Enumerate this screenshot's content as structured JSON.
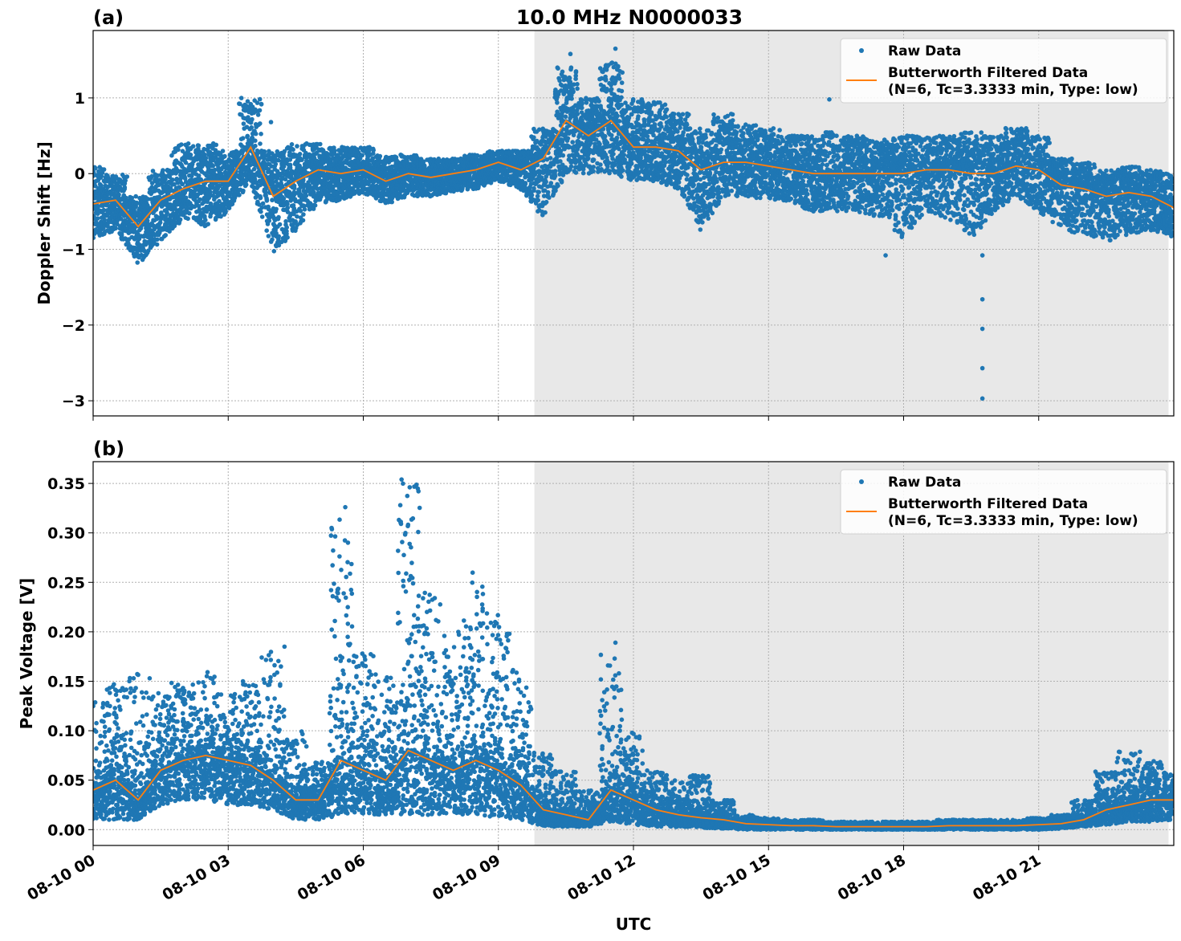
{
  "title": "10.0 MHz N0000033",
  "xlabel": "UTC",
  "x_tick_labels": [
    "08-10 00",
    "08-10 03",
    "08-10 06",
    "08-10 09",
    "08-10 12",
    "08-10 15",
    "08-10 18",
    "08-10 21"
  ],
  "x_tick_hours": [
    0,
    3,
    6,
    9,
    12,
    15,
    18,
    21
  ],
  "xlim": [
    "08-10 00:00",
    "08-11 00:00"
  ],
  "shaded_span": [
    "08-10 09:48",
    "08-10 23:53"
  ],
  "colors": {
    "raw": "#1f77b4",
    "filtered": "#ff7f0e",
    "shade": "#e8e8e8"
  },
  "legend": {
    "raw": "Raw Data",
    "filtered_line1": "Butterworth Filtered Data",
    "filtered_line2": "(N=6, Tc=3.3333 min, Type: low)",
    "placement": "top-right"
  },
  "times": [
    "08-10 00:00",
    "08-10 00:30",
    "08-10 01:00",
    "08-10 01:30",
    "08-10 02:00",
    "08-10 02:30",
    "08-10 03:00",
    "08-10 03:30",
    "08-10 04:00",
    "08-10 04:30",
    "08-10 05:00",
    "08-10 05:30",
    "08-10 06:00",
    "08-10 06:30",
    "08-10 07:00",
    "08-10 07:30",
    "08-10 08:00",
    "08-10 08:30",
    "08-10 09:00",
    "08-10 09:30",
    "08-10 10:00",
    "08-10 10:30",
    "08-10 11:00",
    "08-10 11:30",
    "08-10 12:00",
    "08-10 12:30",
    "08-10 13:00",
    "08-10 13:30",
    "08-10 14:00",
    "08-10 14:30",
    "08-10 15:00",
    "08-10 15:30",
    "08-10 16:00",
    "08-10 16:30",
    "08-10 17:00",
    "08-10 17:30",
    "08-10 18:00",
    "08-10 18:30",
    "08-10 19:00",
    "08-10 19:30",
    "08-10 20:00",
    "08-10 20:30",
    "08-10 21:00",
    "08-10 21:30",
    "08-10 22:00",
    "08-10 22:30",
    "08-10 23:00",
    "08-10 23:30",
    "08-11 00:00"
  ],
  "chart_data": [
    {
      "type": "scatter+line",
      "panel_label": "(a)",
      "ylabel": "Doppler Shift [Hz]",
      "ylim": [
        -3.2,
        1.89
      ],
      "y_ticks": [
        1,
        0,
        -1,
        -2,
        -3
      ],
      "y_tick_labels": [
        "1",
        "0",
        "−1",
        "−2",
        "−3"
      ],
      "grid": true,
      "filtered": [
        -0.4,
        -0.35,
        -0.7,
        -0.35,
        -0.2,
        -0.1,
        -0.1,
        0.35,
        -0.3,
        -0.1,
        0.05,
        0.0,
        0.05,
        -0.1,
        0.0,
        -0.05,
        0.0,
        0.05,
        0.15,
        0.05,
        0.2,
        0.7,
        0.5,
        0.7,
        0.35,
        0.35,
        0.3,
        0.05,
        0.15,
        0.15,
        0.1,
        0.05,
        0.0,
        0.0,
        0.0,
        0.0,
        0.0,
        0.05,
        0.05,
        0.0,
        0.0,
        0.1,
        0.05,
        -0.15,
        -0.2,
        -0.3,
        -0.25,
        -0.3,
        -0.45
      ],
      "raw_max": [
        0.1,
        0.0,
        -0.3,
        0.05,
        0.4,
        0.4,
        0.3,
        1.0,
        0.3,
        0.4,
        0.4,
        0.35,
        0.35,
        0.25,
        0.25,
        0.2,
        0.2,
        0.25,
        0.3,
        0.3,
        0.6,
        1.4,
        1.0,
        1.5,
        1.0,
        0.95,
        0.8,
        0.6,
        0.8,
        0.65,
        0.6,
        0.5,
        0.5,
        0.55,
        0.5,
        0.45,
        0.5,
        0.5,
        0.5,
        0.55,
        0.5,
        0.6,
        0.5,
        0.2,
        0.15,
        0.05,
        0.1,
        0.05,
        0.0
      ],
      "raw_min": [
        -0.85,
        -0.75,
        -1.2,
        -0.9,
        -0.6,
        -0.7,
        -0.5,
        -0.1,
        -1.05,
        -0.75,
        -0.4,
        -0.35,
        -0.25,
        -0.4,
        -0.3,
        -0.3,
        -0.25,
        -0.2,
        -0.1,
        -0.2,
        -0.6,
        0.0,
        0.0,
        0.0,
        -0.1,
        -0.1,
        -0.2,
        -0.75,
        -0.3,
        -0.3,
        -0.35,
        -0.4,
        -0.5,
        -0.5,
        -0.5,
        -0.6,
        -0.85,
        -0.5,
        -0.6,
        -0.85,
        -0.5,
        -0.3,
        -0.5,
        -0.75,
        -0.8,
        -0.9,
        -0.8,
        -0.75,
        -0.85
      ],
      "outliers": [
        [
          "08-10 19:45",
          -1.08
        ],
        [
          "08-10 19:45",
          -1.66
        ],
        [
          "08-10 19:45",
          -2.05
        ],
        [
          "08-10 19:45",
          -2.57
        ],
        [
          "08-10 19:45",
          -2.97
        ],
        [
          "08-10 11:36",
          1.65
        ],
        [
          "08-10 10:36",
          1.58
        ],
        [
          "08-10 17:36",
          -1.08
        ],
        [
          "08-10 03:57",
          0.68
        ],
        [
          "08-10 16:21",
          0.98
        ]
      ]
    },
    {
      "type": "scatter+line",
      "panel_label": "(b)",
      "ylabel": "Peak Voltage [V]",
      "ylim": [
        -0.016,
        0.372
      ],
      "y_ticks": [
        0,
        0.05,
        0.1,
        0.15,
        0.2,
        0.25,
        0.3,
        0.35
      ],
      "y_tick_labels": [
        "0.00",
        "0.05",
        "0.10",
        "0.15",
        "0.20",
        "0.25",
        "0.30",
        "0.35"
      ],
      "grid": true,
      "filtered": [
        0.04,
        0.05,
        0.03,
        0.06,
        0.07,
        0.075,
        0.07,
        0.065,
        0.05,
        0.03,
        0.03,
        0.07,
        0.06,
        0.05,
        0.08,
        0.07,
        0.06,
        0.07,
        0.06,
        0.045,
        0.02,
        0.015,
        0.01,
        0.04,
        0.03,
        0.02,
        0.015,
        0.012,
        0.01,
        0.006,
        0.005,
        0.004,
        0.004,
        0.003,
        0.003,
        0.003,
        0.003,
        0.003,
        0.004,
        0.004,
        0.004,
        0.004,
        0.005,
        0.006,
        0.01,
        0.02,
        0.025,
        0.03,
        0.03
      ],
      "raw_max": [
        0.13,
        0.15,
        0.16,
        0.14,
        0.15,
        0.16,
        0.14,
        0.15,
        0.18,
        0.1,
        0.07,
        0.32,
        0.18,
        0.16,
        0.35,
        0.24,
        0.2,
        0.26,
        0.22,
        0.17,
        0.08,
        0.06,
        0.04,
        0.18,
        0.1,
        0.06,
        0.05,
        0.055,
        0.03,
        0.015,
        0.012,
        0.01,
        0.01,
        0.008,
        0.008,
        0.008,
        0.008,
        0.008,
        0.01,
        0.01,
        0.01,
        0.01,
        0.012,
        0.015,
        0.03,
        0.06,
        0.08,
        0.07,
        0.06
      ],
      "raw_min": [
        0.01,
        0.01,
        0.01,
        0.025,
        0.03,
        0.03,
        0.025,
        0.025,
        0.02,
        0.01,
        0.01,
        0.015,
        0.015,
        0.015,
        0.015,
        0.015,
        0.015,
        0.015,
        0.012,
        0.01,
        0.003,
        0.003,
        0.003,
        0.008,
        0.005,
        0.003,
        0.002,
        0.002,
        0.001,
        0,
        0,
        0,
        0,
        0,
        0,
        0,
        0,
        0,
        0,
        0,
        0,
        0,
        0,
        0.001,
        0.003,
        0.005,
        0.008,
        0.008,
        0.01
      ],
      "outliers": [
        [
          "08-10 06:51",
          0.354
        ],
        [
          "08-10 05:36",
          0.326
        ],
        [
          "08-10 04:15",
          0.185
        ],
        [
          "08-10 11:36",
          0.189
        ]
      ]
    }
  ]
}
